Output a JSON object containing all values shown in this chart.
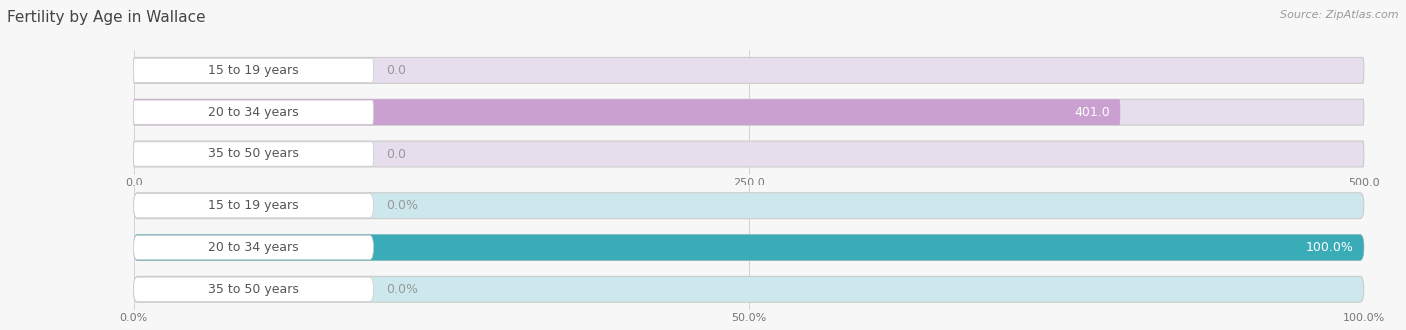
{
  "title": "Fertility by Age in Wallace",
  "source": "Source: ZipAtlas.com",
  "top_chart": {
    "categories": [
      "15 to 19 years",
      "20 to 34 years",
      "35 to 50 years"
    ],
    "values": [
      0.0,
      401.0,
      0.0
    ],
    "max_value": 500.0,
    "tick_values": [
      0.0,
      250.0,
      500.0
    ],
    "bar_color": "#c9a0d0",
    "bar_bg_color": "#e6dded",
    "label_bg": "#ffffff",
    "label_text_color": "#555555",
    "value_color_inside": "#ffffff",
    "value_color_outside": "#aaaaaa"
  },
  "bottom_chart": {
    "categories": [
      "15 to 19 years",
      "20 to 34 years",
      "35 to 50 years"
    ],
    "values": [
      0.0,
      100.0,
      0.0
    ],
    "max_value": 100.0,
    "tick_values": [
      0.0,
      50.0,
      100.0
    ],
    "bar_color": "#3aacb8",
    "bar_bg_color": "#cce8ec",
    "label_bg": "#ffffff",
    "label_text_color": "#555555",
    "value_color_inside": "#ffffff",
    "value_color_outside": "#aaaaaa"
  },
  "background_color": "#f7f7f7",
  "title_font_size": 11,
  "source_font_size": 8,
  "cat_font_size": 9,
  "value_font_size": 9
}
